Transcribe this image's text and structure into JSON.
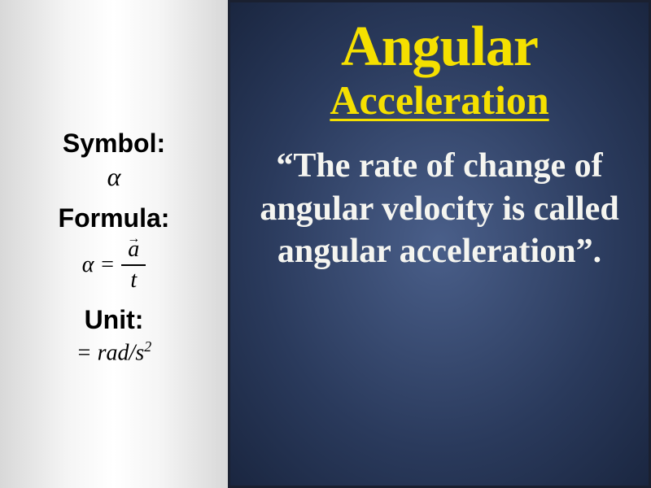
{
  "left": {
    "symbol_label": "Symbol:",
    "symbol_value": "α",
    "formula_label": "Formula:",
    "formula_lhs": "α =",
    "formula_numerator": "a",
    "formula_vector_arrow": "→",
    "formula_denominator": "t",
    "unit_label": "Unit:",
    "unit_prefix": "= ",
    "unit_base": "rad/s",
    "unit_exponent": "2"
  },
  "right": {
    "title_main": "Angular",
    "title_sub": "Acceleration",
    "definition": "“The rate of change of angular velocity is called angular acceleration”."
  },
  "styling": {
    "left_gradient_start": "#d8d8d8",
    "left_gradient_mid": "#ffffff",
    "right_bg_center": "#4a5f8a",
    "right_bg_edge": "#1a2640",
    "title_color": "#f5e000",
    "definition_color": "#f5f5f0",
    "left_text_color": "#000000",
    "title_main_fontsize": 70,
    "title_sub_fontsize": 50,
    "definition_fontsize": 42,
    "left_label_fontsize": 32,
    "left_value_fontsize": 28
  }
}
